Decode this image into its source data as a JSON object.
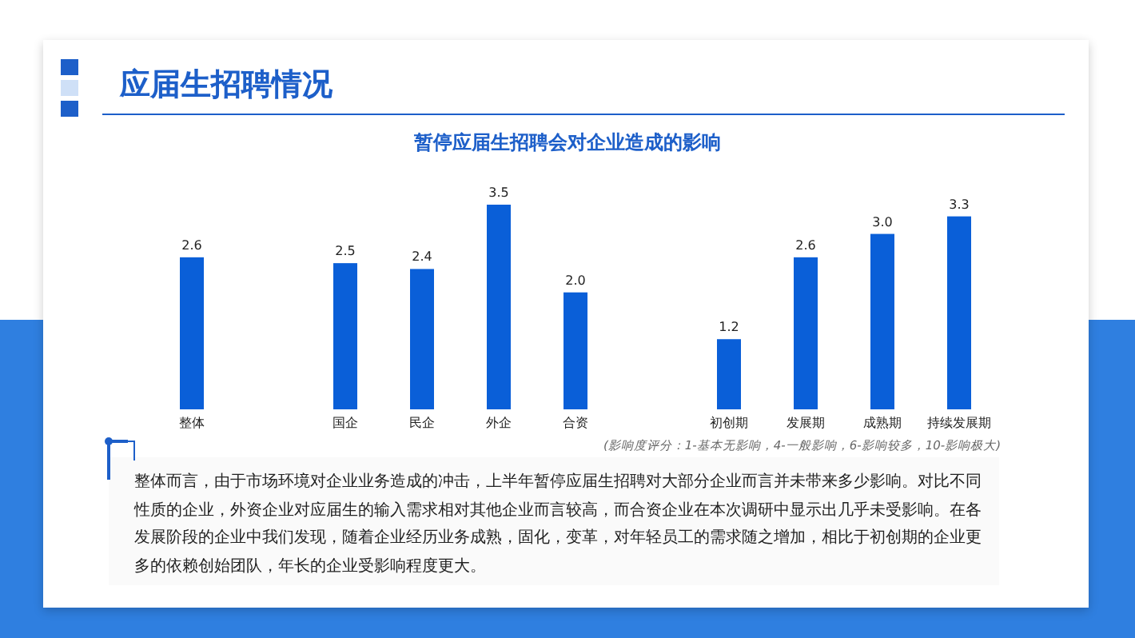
{
  "chart_data": {
    "type": "bar",
    "title": "应届生招聘情况",
    "subtitle": "暂停应届生招聘会对企业造成的影响",
    "categories": [
      "整体",
      null,
      "国企",
      "民企",
      "外企",
      "合资",
      null,
      "初创期",
      "发展期",
      "成熟期",
      "持续发展期"
    ],
    "values": [
      2.6,
      null,
      2.5,
      2.4,
      3.5,
      2.0,
      null,
      1.2,
      2.6,
      3.0,
      3.3
    ],
    "color": "#0a5fd8",
    "value_labels": [
      "2.6",
      null,
      "2.5",
      "2.4",
      "3.5",
      "2.0",
      null,
      "1.2",
      "2.6",
      "3.0",
      "3.3"
    ],
    "annotations": [
      "(影响度评分：1-基本无影响，4-一般影响，6-影响较多，10-影响极大)",
      "整体而言，由于市场环境对企业业务造成的冲击，上半年暂停应届生招聘对大部分企业而言并未带来多少影响。对比不同性质的企业，外资企业对应届生的输入需求相对其他企业而言较高，而合资企业在本次调研中显示出几乎未受影响。在各发展阶段的企业中我们发现，随着企业经历业务成熟，固化，变革，对年轻员工的需求随之增加，相比于初创期的企业更多的依赖创始团队，年长的企业受影响程度更大。"
    ]
  }
}
